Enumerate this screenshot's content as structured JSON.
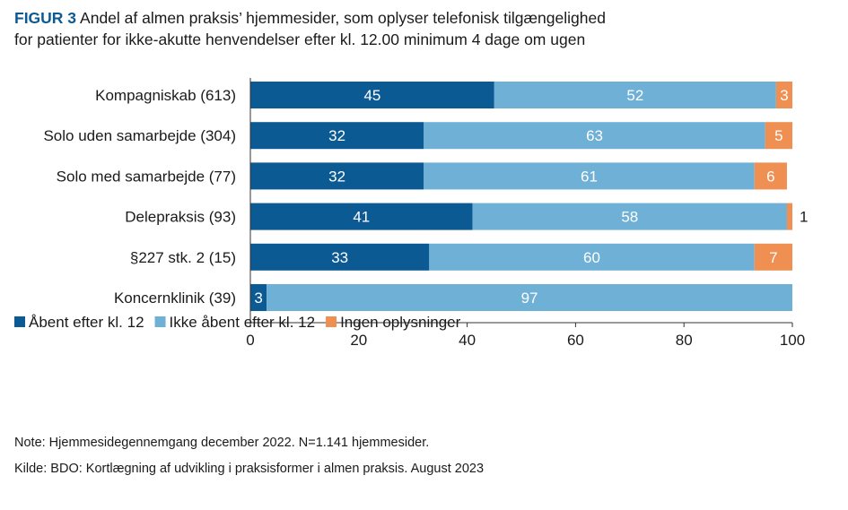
{
  "figure": {
    "label": "FIGUR 3",
    "title_line1": "Andel af almen praksis’ hjemmesider, som oplyser telefonisk tilgængelighed",
    "title_line2": "for patienter for ikke-akutte henvendelser efter kl. 12.00 minimum 4 dage om ugen"
  },
  "chart_data": {
    "type": "bar",
    "orientation": "horizontal",
    "stacked": true,
    "categories": [
      "Kompagniskab (613)",
      "Solo uden samarbejde (304)",
      "Solo med samarbejde (77)",
      "Delepraksis (93)",
      "§227 stk. 2 (15)",
      "Koncernklinik (39)"
    ],
    "series": [
      {
        "name": "Åbent efter kl. 12",
        "values": [
          45,
          32,
          32,
          41,
          33,
          3
        ],
        "color": "#0c5a94",
        "label_color": "#ffffff"
      },
      {
        "name": "Ikke åbent efter kl. 12",
        "values": [
          52,
          63,
          61,
          58,
          60,
          97
        ],
        "color": "#6fb0d6",
        "label_color": "#ffffff"
      },
      {
        "name": "Ingen oplysninger",
        "values": [
          3,
          5,
          6,
          1,
          7,
          0
        ],
        "color": "#ef8f52",
        "label_color": "#ffffff"
      }
    ],
    "xlim": [
      0,
      100
    ],
    "xticks": [
      "0",
      "20",
      "40",
      "60",
      "80",
      "100"
    ],
    "grid": false,
    "legend_position": "bottom-left"
  },
  "notes": {
    "note": "Note: Hjemmesidegennemgang december 2022. N=1.141 hjemmesider.",
    "source": "Kilde: BDO: Kortlægning af udvikling i praksisformer i almen praksis. August 2023"
  }
}
